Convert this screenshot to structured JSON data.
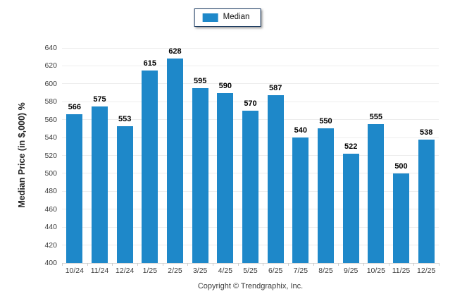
{
  "legend": {
    "label": "Median"
  },
  "y_axis": {
    "title": "Median Price (in $,000) %"
  },
  "footer": {
    "text": "Copyright © Trendgraphix, Inc."
  },
  "colors": {
    "bar": "#1e88c9",
    "legend_border": "#17375e",
    "grid": "#ededed",
    "axis_text": "#3d3d3d"
  },
  "chart_data": {
    "type": "bar",
    "title": "",
    "categories": [
      "10/24",
      "11/24",
      "12/24",
      "1/25",
      "2/25",
      "3/25",
      "4/25",
      "5/25",
      "6/25",
      "7/25",
      "8/25",
      "9/25",
      "10/25",
      "11/25",
      "12/25"
    ],
    "values": [
      566,
      575,
      553,
      615,
      628,
      595,
      590,
      570,
      587,
      540,
      550,
      522,
      555,
      500,
      538
    ],
    "xlabel": "",
    "ylabel": "Median Price (in $,000) %",
    "ylim": [
      400,
      640
    ],
    "ytick_interval": 20,
    "yticks": [
      400,
      420,
      440,
      460,
      480,
      500,
      520,
      540,
      560,
      580,
      600,
      620,
      640
    ],
    "grid": true,
    "value_labels": true,
    "legend": [
      "Median"
    ],
    "legend_position": "top-center",
    "bar_color": "#1e88c9"
  }
}
